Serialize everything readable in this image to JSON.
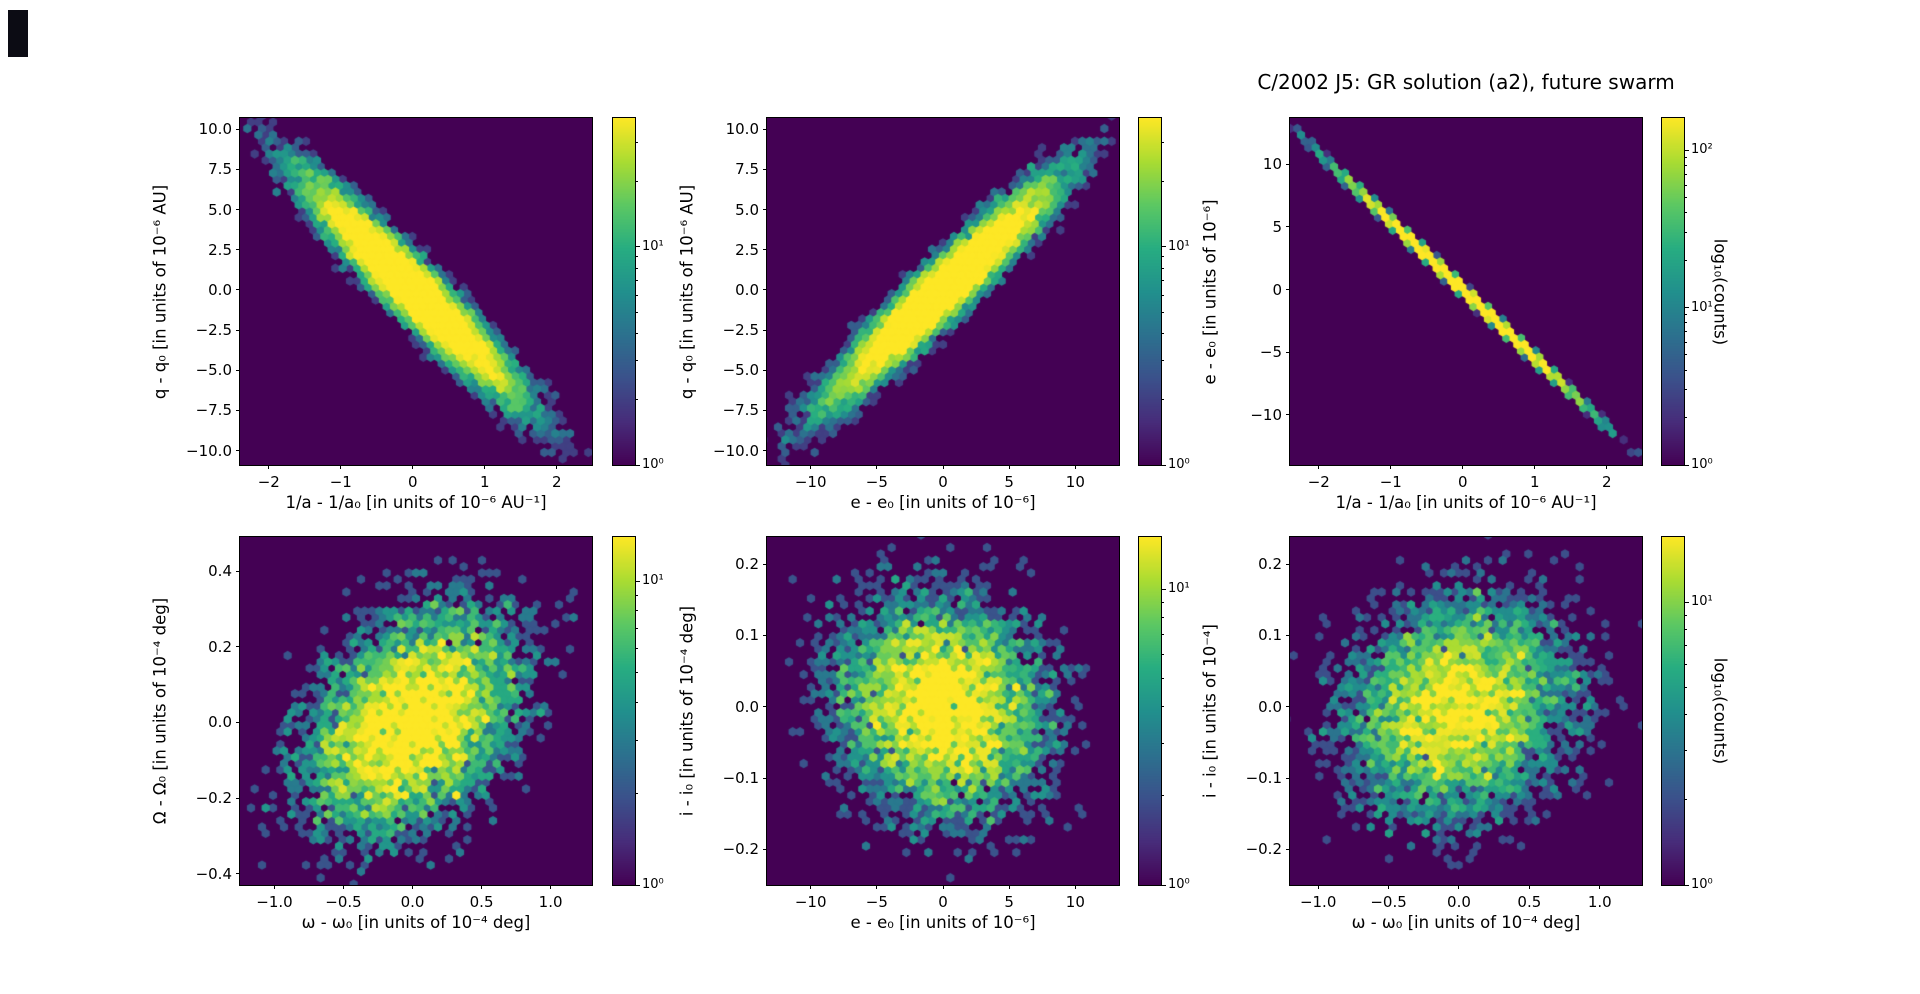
{
  "figure": {
    "title": "C/2002 J5: GR solution (a2), future swarm"
  },
  "palette": {
    "background": "#ffffff",
    "colormap": "viridis",
    "hexbin_zero_color": "#440154",
    "frame_color": "#000000",
    "text_color": "#000000"
  },
  "chart_data": [
    {
      "id": "q_vs_inva",
      "type": "hexbin",
      "xlabel": "1/a - 1/a₀ [in units of 10⁻⁶ AU⁻¹]",
      "ylabel": "q - q₀ [in units of 10⁻⁶ AU]",
      "xlim": [
        -2.4,
        2.49
      ],
      "ylim": [
        -10.9,
        10.7
      ],
      "xticks": [
        -2,
        -1,
        0,
        1,
        2
      ],
      "xtick_labels": [
        "−2",
        "−1",
        "0",
        "1",
        "2"
      ],
      "yticks": [
        10,
        7.5,
        5,
        2.5,
        0,
        -2.5,
        -5,
        -7.5,
        -10
      ],
      "ytick_labels": [
        "10.0",
        "7.5",
        "5.0",
        "2.5",
        "0.0",
        "−2.5",
        "−5.0",
        "−7.5",
        "−10.0"
      ],
      "distribution": {
        "kind": "gaussian2d",
        "n": 14000,
        "center": [
          0,
          0
        ],
        "sigma_x": 0.75,
        "sigma_y": 3.45,
        "rho": -0.95,
        "seed": 101
      },
      "colorbar": {
        "scale": "log10",
        "vmin": 1,
        "vmax": 39,
        "tick_exponents": [
          0,
          1
        ],
        "tick_labels": [
          "10⁰",
          "10¹"
        ],
        "label": ""
      }
    },
    {
      "id": "q_vs_e",
      "type": "hexbin",
      "xlabel": "e - e₀ [in units of 10⁻⁶]",
      "ylabel": "q - q₀ [in units of 10⁻⁶ AU]",
      "xlim": [
        -13.3,
        13.3
      ],
      "ylim": [
        -10.9,
        10.7
      ],
      "xticks": [
        -10,
        -5,
        0,
        5,
        10
      ],
      "xtick_labels": [
        "−10",
        "−5",
        "0",
        "5",
        "10"
      ],
      "yticks": [
        10,
        7.5,
        5,
        2.5,
        0,
        -2.5,
        -5,
        -7.5,
        -10
      ],
      "ytick_labels": [
        "10.0",
        "7.5",
        "5.0",
        "2.5",
        "0.0",
        "−2.5",
        "−5.0",
        "−7.5",
        "−10.0"
      ],
      "distribution": {
        "kind": "gaussian2d",
        "n": 14000,
        "center": [
          0,
          0
        ],
        "sigma_x": 4.3,
        "sigma_y": 3.45,
        "rho": 0.95,
        "seed": 102
      },
      "colorbar": {
        "scale": "log10",
        "vmin": 1,
        "vmax": 39,
        "tick_exponents": [
          0,
          1
        ],
        "tick_labels": [
          "10⁰",
          "10¹"
        ],
        "label": ""
      }
    },
    {
      "id": "e_vs_inva",
      "type": "hexbin",
      "xlabel": "1/a - 1/a₀ [in units of 10⁻⁶ AU⁻¹]",
      "ylabel": "e - e₀ [in units of 10⁻⁶]",
      "xlim": [
        -2.4,
        2.49
      ],
      "ylim": [
        -14.0,
        13.7
      ],
      "xticks": [
        -2,
        -1,
        0,
        1,
        2
      ],
      "xtick_labels": [
        "−2",
        "−1",
        "0",
        "1",
        "2"
      ],
      "yticks": [
        10,
        5,
        0,
        -5,
        -10
      ],
      "ytick_labels": [
        "10",
        "5",
        "0",
        "−5",
        "−10"
      ],
      "distribution": {
        "kind": "gaussian2d",
        "n": 14000,
        "center": [
          0,
          0
        ],
        "sigma_x": 0.75,
        "sigma_y": 4.1,
        "rho": -0.9995,
        "seed": 103
      },
      "colorbar": {
        "scale": "log10",
        "vmin": 1,
        "vmax": 160,
        "tick_exponents": [
          0,
          1,
          2
        ],
        "tick_labels": [
          "10⁰",
          "10¹",
          "10²"
        ],
        "label": "log₁₀(counts)"
      }
    },
    {
      "id": "Omega_vs_omega",
      "type": "hexbin",
      "xlabel": "ω - ω₀ [in units of 10⁻⁴ deg]",
      "ylabel": "Ω - Ω₀ [in units of 10⁻⁴ deg]",
      "xlim": [
        -1.25,
        1.3
      ],
      "ylim": [
        -0.43,
        0.49
      ],
      "xticks": [
        -1,
        -0.5,
        0,
        0.5,
        1
      ],
      "xtick_labels": [
        "−1.0",
        "−0.5",
        "0.0",
        "0.5",
        "1.0"
      ],
      "yticks": [
        0.4,
        0.2,
        0,
        -0.2,
        -0.4
      ],
      "ytick_labels": [
        "0.4",
        "0.2",
        "0.0",
        "−0.2",
        "−0.4"
      ],
      "distribution": {
        "kind": "gaussian2d",
        "n": 8000,
        "center": [
          0,
          0
        ],
        "sigma_x": 0.42,
        "sigma_y": 0.16,
        "rho": 0.35,
        "seed": 104
      },
      "colorbar": {
        "scale": "log10",
        "vmin": 1,
        "vmax": 14,
        "tick_exponents": [
          0,
          1
        ],
        "tick_labels": [
          "10⁰",
          "10¹"
        ],
        "label": ""
      }
    },
    {
      "id": "i_vs_e",
      "type": "hexbin",
      "xlabel": "e - e₀ [in units of 10⁻⁶]",
      "ylabel": "i - i₀ [in units of 10⁻⁴ deg]",
      "xlim": [
        -13.3,
        13.3
      ],
      "ylim": [
        -0.25,
        0.238
      ],
      "xticks": [
        -10,
        -5,
        0,
        5,
        10
      ],
      "xtick_labels": [
        "−10",
        "−5",
        "0",
        "5",
        "10"
      ],
      "yticks": [
        0.2,
        0.1,
        0,
        -0.1,
        -0.2
      ],
      "ytick_labels": [
        "0.2",
        "0.1",
        "0.0",
        "−0.1",
        "−0.2"
      ],
      "distribution": {
        "kind": "gaussian2d",
        "n": 8000,
        "center": [
          0,
          0
        ],
        "sigma_x": 4.3,
        "sigma_y": 0.082,
        "rho": -0.12,
        "seed": 105
      },
      "colorbar": {
        "scale": "log10",
        "vmin": 1,
        "vmax": 15,
        "tick_exponents": [
          0,
          1
        ],
        "tick_labels": [
          "10⁰",
          "10¹"
        ],
        "label": ""
      }
    },
    {
      "id": "i_vs_omega",
      "type": "hexbin",
      "xlabel": "ω - ω₀ [in units of 10⁻⁴ deg]",
      "ylabel": "i - i₀ [in units of 10⁻⁴]",
      "xlim": [
        -1.2,
        1.3
      ],
      "ylim": [
        -0.25,
        0.238
      ],
      "xticks": [
        -1,
        -0.5,
        0,
        0.5,
        1
      ],
      "xtick_labels": [
        "−1.0",
        "−0.5",
        "0.0",
        "0.5",
        "1.0"
      ],
      "yticks": [
        0.2,
        0.1,
        0,
        -0.1,
        -0.2
      ],
      "ytick_labels": [
        "0.2",
        "0.1",
        "0.0",
        "−0.1",
        "−0.2"
      ],
      "distribution": {
        "kind": "gaussian2d",
        "n": 8000,
        "center": [
          0,
          0
        ],
        "sigma_x": 0.42,
        "sigma_y": 0.082,
        "rho": 0.12,
        "seed": 106
      },
      "colorbar": {
        "scale": "log10",
        "vmin": 1,
        "vmax": 17,
        "tick_exponents": [
          0,
          1
        ],
        "tick_labels": [
          "10⁰",
          "10¹"
        ],
        "label": "log₁₀(counts)"
      }
    }
  ]
}
